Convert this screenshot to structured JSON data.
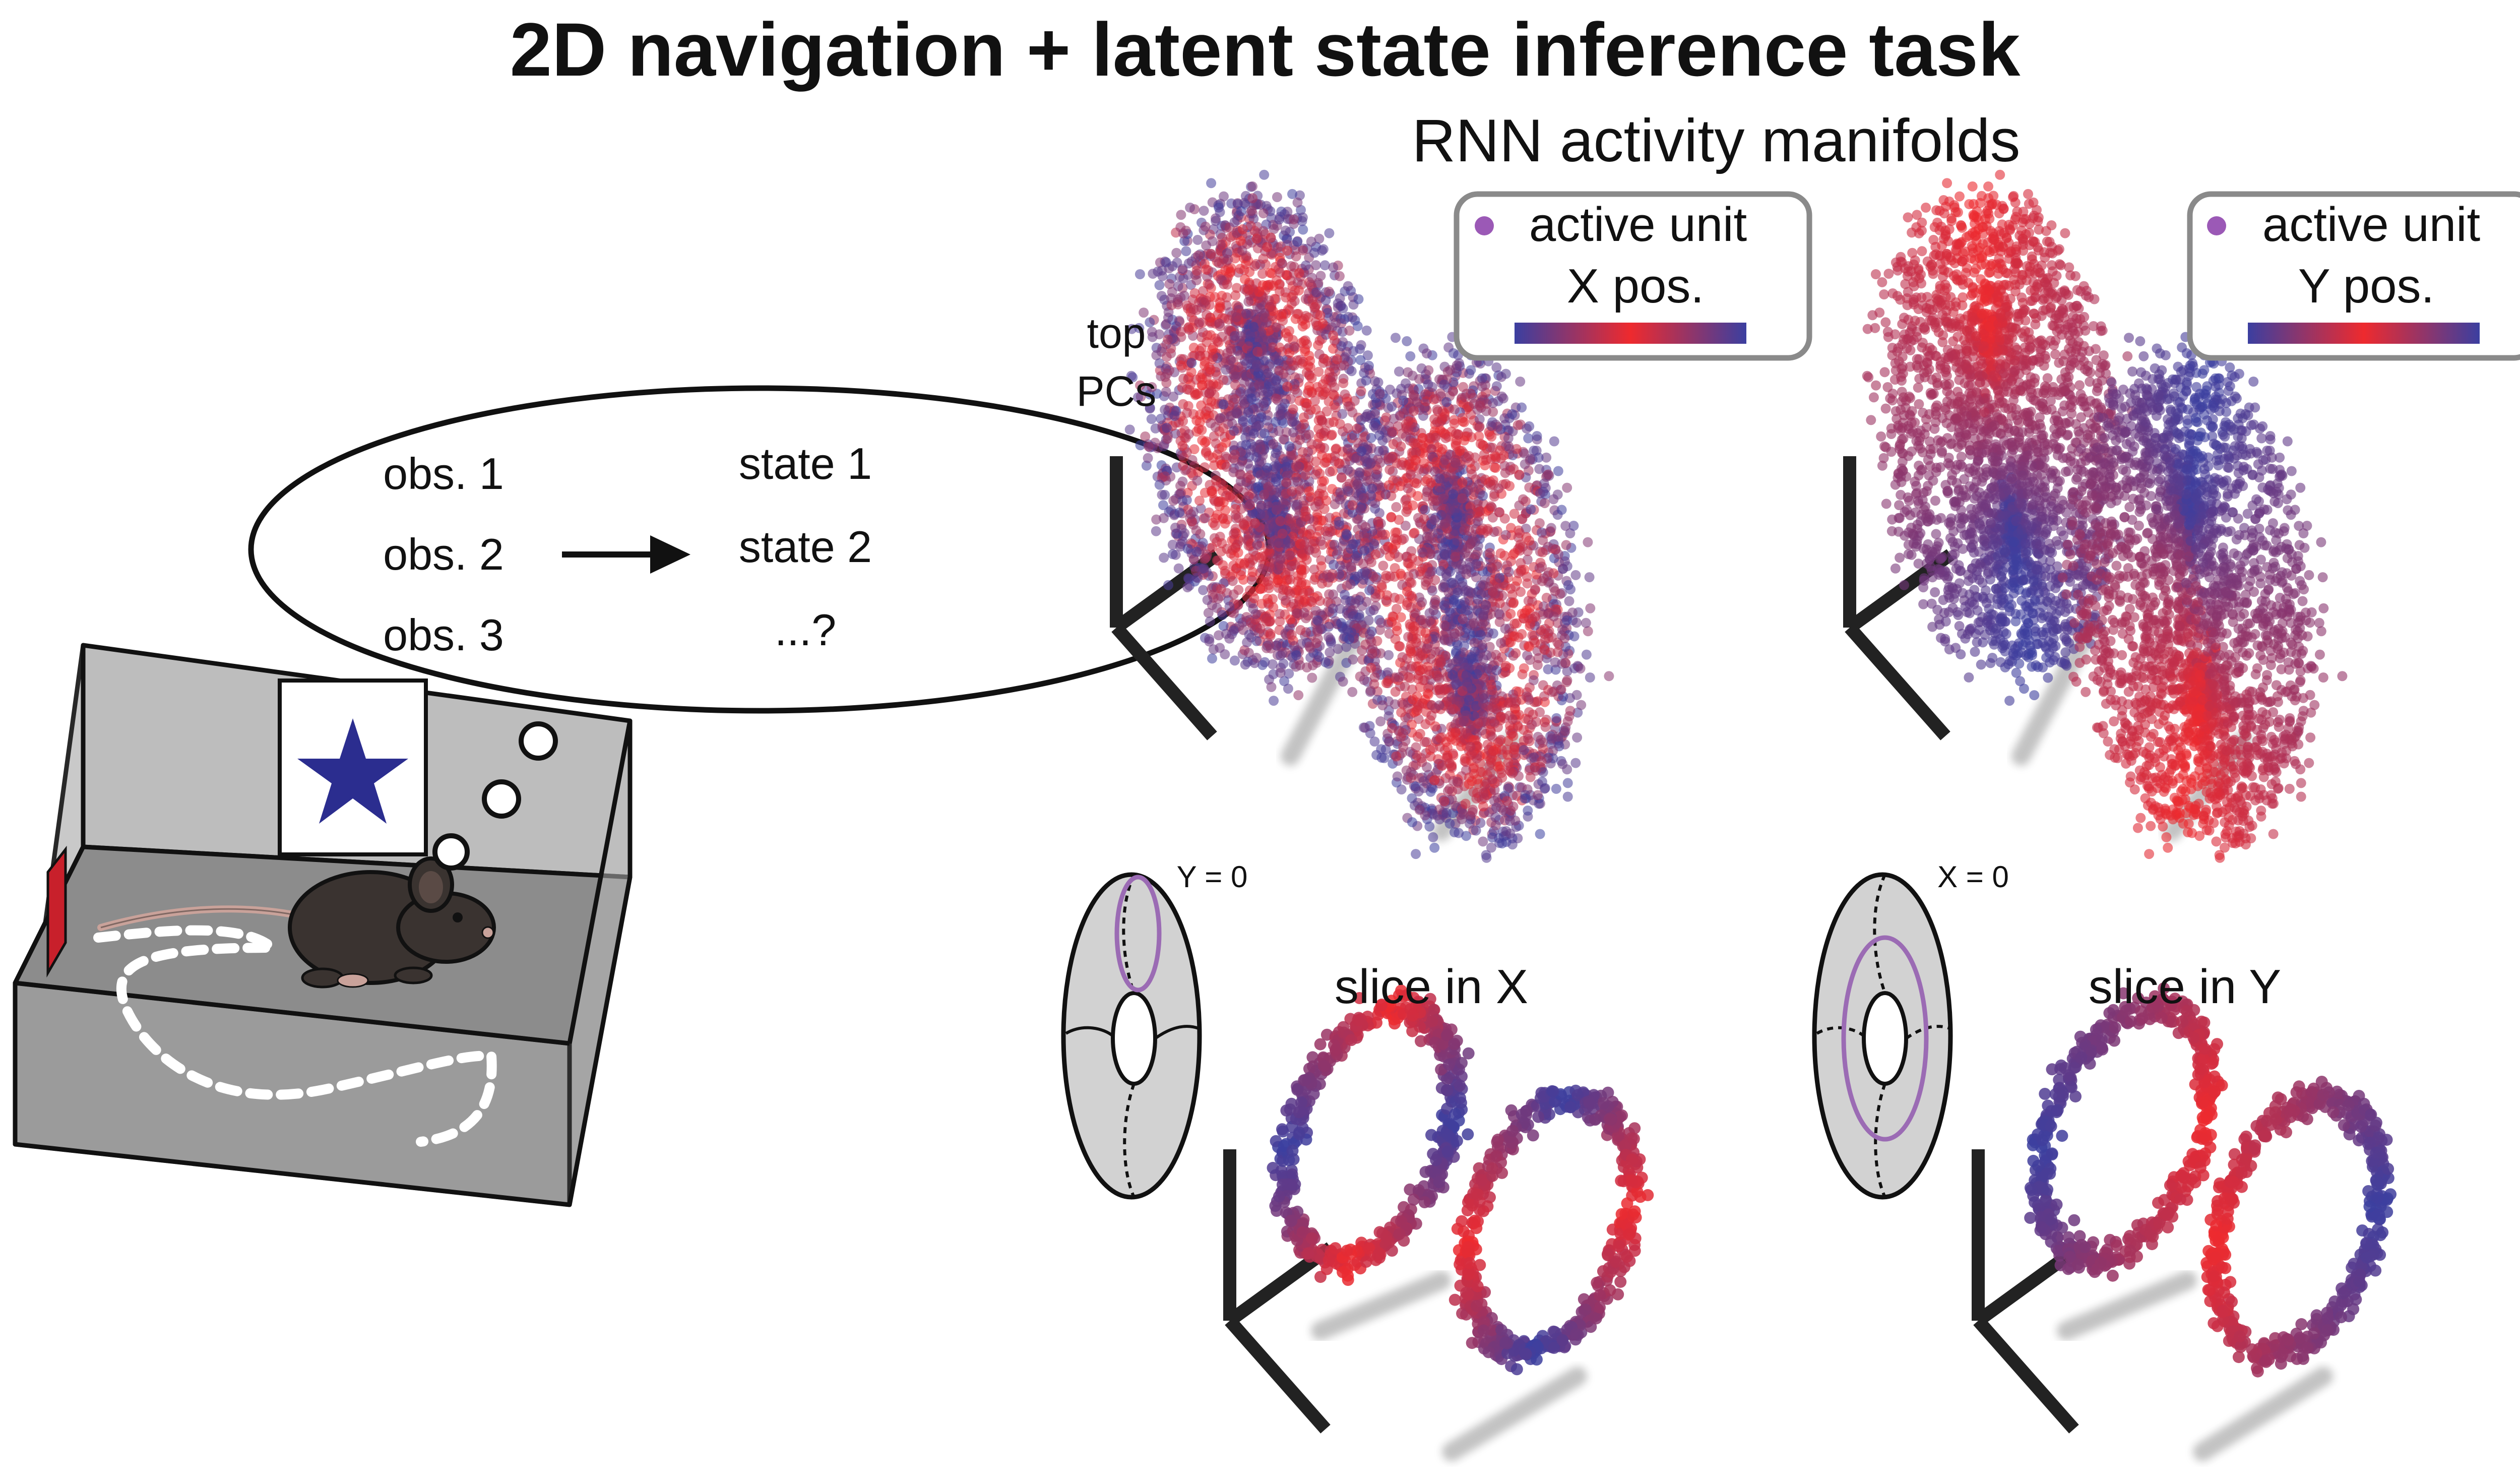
{
  "title": "2D navigation + latent state inference task",
  "subtitle": "RNN activity manifolds",
  "axes_label_line1": "top",
  "axes_label_line2": "PCs",
  "thought_bubble": {
    "obs": [
      "obs. 1",
      "obs. 2",
      "obs. 3"
    ],
    "states": [
      "state 1",
      "state 2",
      "...?"
    ]
  },
  "panels": [
    {
      "legend_marker_label": "active unit",
      "legend_colorbar_label": "X pos.",
      "slice_label": "slice in X",
      "torus_label": "Y = 0"
    },
    {
      "legend_marker_label": "active unit",
      "legend_colorbar_label": "Y pos.",
      "slice_label": "slice in Y",
      "torus_label": "X = 0"
    }
  ],
  "colors": {
    "blue": "#3b3fa0",
    "red": "#ee2a2e",
    "purple": "#9b59b6",
    "star": "#2b2d8f",
    "red_cue": "#c8202b",
    "wall": "#b9b9b9",
    "floor": "#8f8f8f",
    "legend_border": "#8a8a8a"
  },
  "icons": [
    "star-icon",
    "mouse-icon",
    "arrow-right-icon",
    "torus-icon"
  ]
}
